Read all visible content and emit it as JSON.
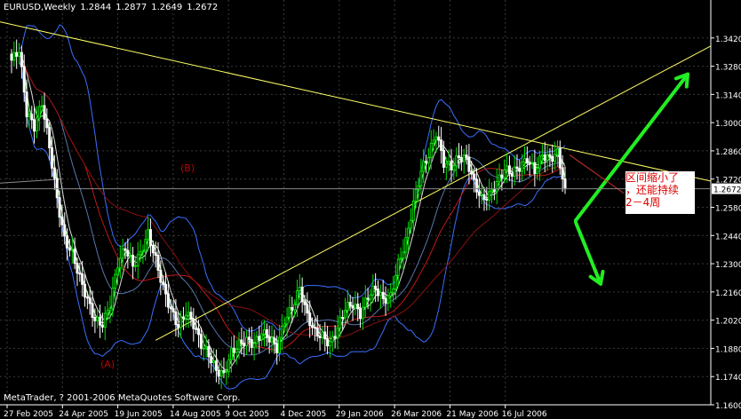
{
  "header": {
    "symbol": "EURUSD,Weekly",
    "open": "1.2844",
    "high": "1.2877",
    "low": "1.2649",
    "close": "1.2672"
  },
  "copyright": "MetaTrader, ? 2001-2006 MetaQuotes Software Corp.",
  "annotation": {
    "lines": [
      "区间缩小了",
      "，还能持续",
      "2－4周"
    ],
    "color": "#e00000"
  },
  "wave_labels": {
    "a": "(A)",
    "b": "(B)"
  },
  "colors": {
    "background": "#000000",
    "grid": "#3a3a3a",
    "bull": "#00e000",
    "bear": "#ffffff",
    "bollinger": "#3a6fff",
    "trendline": "#ffff66",
    "ma_red": "#c01818",
    "arrows": "#22ee22"
  },
  "chart_data": {
    "type": "candlestick",
    "timeframe": "Weekly",
    "ylim": [
      1.16,
      1.356
    ],
    "y_ticks": [
      "1.3420",
      "1.3280",
      "1.3140",
      "1.3000",
      "1.2860",
      "1.2720",
      "1.2580",
      "1.2440",
      "1.2300",
      "1.2160",
      "1.2020",
      "1.1880",
      "1.1740",
      "1.1600"
    ],
    "current_price": "1.2672",
    "x_labels": [
      "27 Feb 2005",
      "24 Apr 2005",
      "19 Jun 2005",
      "14 Aug 2005",
      "9 Oct 2005",
      "4 Dec 2005",
      "29 Jan 2006",
      "26 Mar 2006",
      "21 May 2006",
      "16 Jul 2006"
    ],
    "anchors": [
      1.331,
      1.336,
      1.305,
      1.298,
      1.31,
      1.288,
      1.262,
      1.242,
      1.235,
      1.223,
      1.212,
      1.202,
      1.2,
      1.21,
      1.23,
      1.238,
      1.229,
      1.235,
      1.245,
      1.232,
      1.218,
      1.207,
      1.199,
      1.206,
      1.2,
      1.19,
      1.185,
      1.177,
      1.175,
      1.186,
      1.19,
      1.192,
      1.19,
      1.196,
      1.193,
      1.188,
      1.202,
      1.208,
      1.218,
      1.204,
      1.196,
      1.194,
      1.19,
      1.198,
      1.208,
      1.21,
      1.205,
      1.214,
      1.218,
      1.212,
      1.214,
      1.23,
      1.241,
      1.26,
      1.276,
      1.284,
      1.295,
      1.28,
      1.278,
      1.283,
      1.282,
      1.27,
      1.262,
      1.264,
      1.27,
      1.277,
      1.275,
      1.278,
      1.282,
      1.276,
      1.284,
      1.282,
      1.285,
      1.2672
    ],
    "wave_label_prices": {
      "a": 1.18,
      "b": 1.277
    },
    "projections": [
      {
        "name": "up",
        "from": 1.2515,
        "to": 1.324
      },
      {
        "name": "down",
        "from": 1.2505,
        "to": 1.22
      }
    ]
  }
}
